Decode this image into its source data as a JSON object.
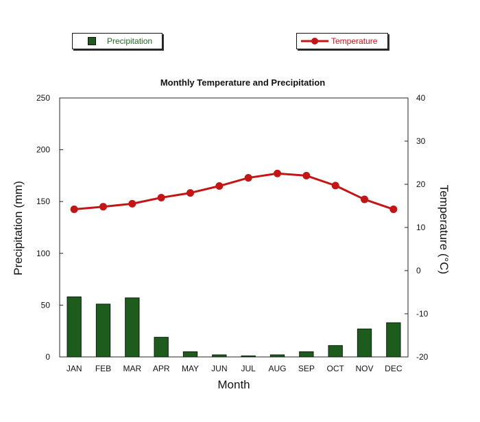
{
  "chart_data": {
    "type": "bar+line",
    "title": "Monthly Temperature and Precipitation",
    "xlabel": "Month",
    "ylabel_left": "Precipitation (mm)",
    "ylabel_right": "Temperature (°C)",
    "categories": [
      "JAN",
      "FEB",
      "MAR",
      "APR",
      "MAY",
      "JUN",
      "JUL",
      "AUG",
      "SEP",
      "OCT",
      "NOV",
      "DEC"
    ],
    "ylim_left": [
      0,
      250
    ],
    "ylim_right": [
      -20,
      40
    ],
    "yticks_left": [
      0,
      50,
      100,
      150,
      200,
      250
    ],
    "yticks_right": [
      -20,
      -10,
      0,
      10,
      20,
      30,
      40
    ],
    "series": [
      {
        "name": "Precipitation",
        "kind": "bar",
        "axis": "left",
        "color": "#1e5c1e",
        "values": [
          58,
          51,
          57,
          19,
          5,
          2,
          1,
          2,
          5,
          11,
          27,
          33
        ]
      },
      {
        "name": "Temperature",
        "kind": "line",
        "axis": "right",
        "color": "#c41414",
        "values": [
          14.2,
          14.8,
          15.5,
          16.9,
          18.0,
          19.6,
          21.5,
          22.5,
          22.0,
          19.7,
          16.5,
          14.2
        ]
      }
    ],
    "legend_placement": "top",
    "grid": false
  }
}
